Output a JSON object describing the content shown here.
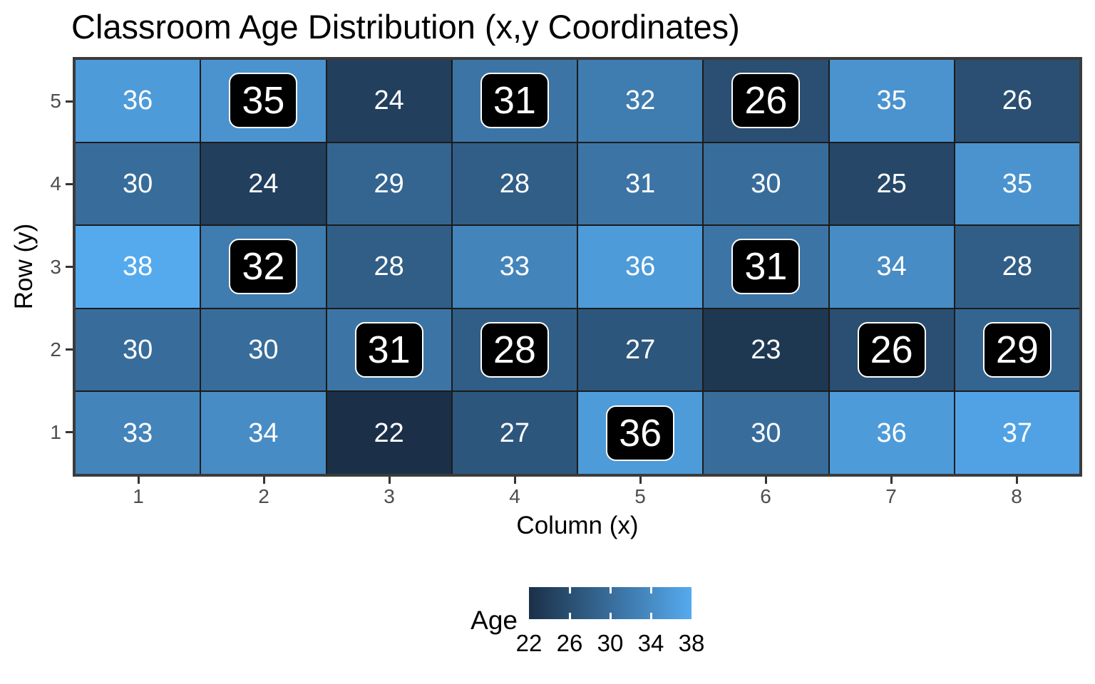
{
  "chart_data": {
    "type": "heatmap",
    "title": "Classroom Age Distribution (x,y Coordinates)",
    "xlabel": "Column (x)",
    "ylabel": "Row (y)",
    "x_ticks": [
      "1",
      "2",
      "3",
      "4",
      "5",
      "6",
      "7",
      "8"
    ],
    "y_ticks": [
      "5",
      "4",
      "3",
      "2",
      "1"
    ],
    "grid": false,
    "legend": {
      "label": "Age",
      "position": "bottom",
      "min": 22,
      "max": 38,
      "ticks": [
        "22",
        "26",
        "30",
        "34",
        "38"
      ],
      "low_color": "#1b3048",
      "high_color": "#55aaee"
    },
    "highlight_style": {
      "fill": "#000000",
      "text": "#ffffff",
      "border": "#ffffff"
    },
    "cell_text_color": "#ffffff",
    "rows": [
      {
        "y": 5,
        "values": [
          36,
          35,
          24,
          31,
          32,
          26,
          35,
          26
        ],
        "highlighted": [
          false,
          true,
          false,
          true,
          false,
          true,
          false,
          false
        ]
      },
      {
        "y": 4,
        "values": [
          30,
          24,
          29,
          28,
          31,
          30,
          25,
          35
        ],
        "highlighted": [
          false,
          false,
          false,
          false,
          false,
          false,
          false,
          false
        ]
      },
      {
        "y": 3,
        "values": [
          38,
          32,
          28,
          33,
          36,
          31,
          34,
          28
        ],
        "highlighted": [
          false,
          true,
          false,
          false,
          false,
          true,
          false,
          false
        ]
      },
      {
        "y": 2,
        "values": [
          30,
          30,
          31,
          28,
          27,
          23,
          26,
          29
        ],
        "highlighted": [
          false,
          false,
          true,
          true,
          false,
          false,
          true,
          true
        ]
      },
      {
        "y": 1,
        "values": [
          33,
          34,
          22,
          27,
          36,
          30,
          36,
          37
        ],
        "highlighted": [
          false,
          false,
          false,
          false,
          true,
          false,
          false,
          false
        ]
      }
    ]
  }
}
